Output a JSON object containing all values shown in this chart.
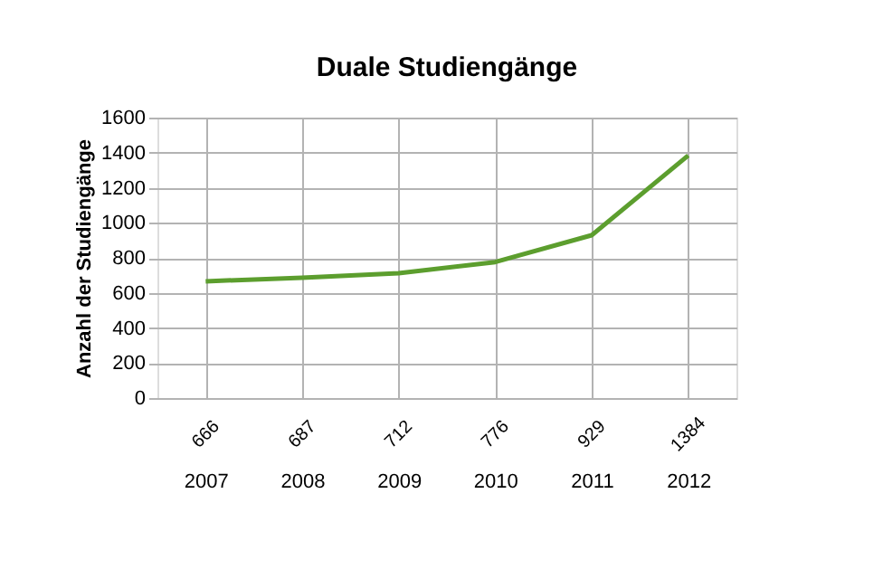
{
  "chart_data": {
    "type": "line",
    "title": "Duale Studiengänge",
    "ylabel": "Anzahl der Studiengänge",
    "categories": [
      "2007",
      "2008",
      "2009",
      "2010",
      "2011",
      "2012"
    ],
    "series": [
      {
        "color": "#5c9e2e",
        "values": [
          666,
          687,
          712,
          776,
          929,
          1384
        ]
      }
    ],
    "ylim": [
      0,
      1600
    ],
    "yticks": [
      0,
      200,
      400,
      600,
      800,
      1000,
      1200,
      1400,
      1600
    ],
    "data_labels": true,
    "grid": true,
    "legend": false,
    "marker": "none",
    "line_style": "solid"
  }
}
